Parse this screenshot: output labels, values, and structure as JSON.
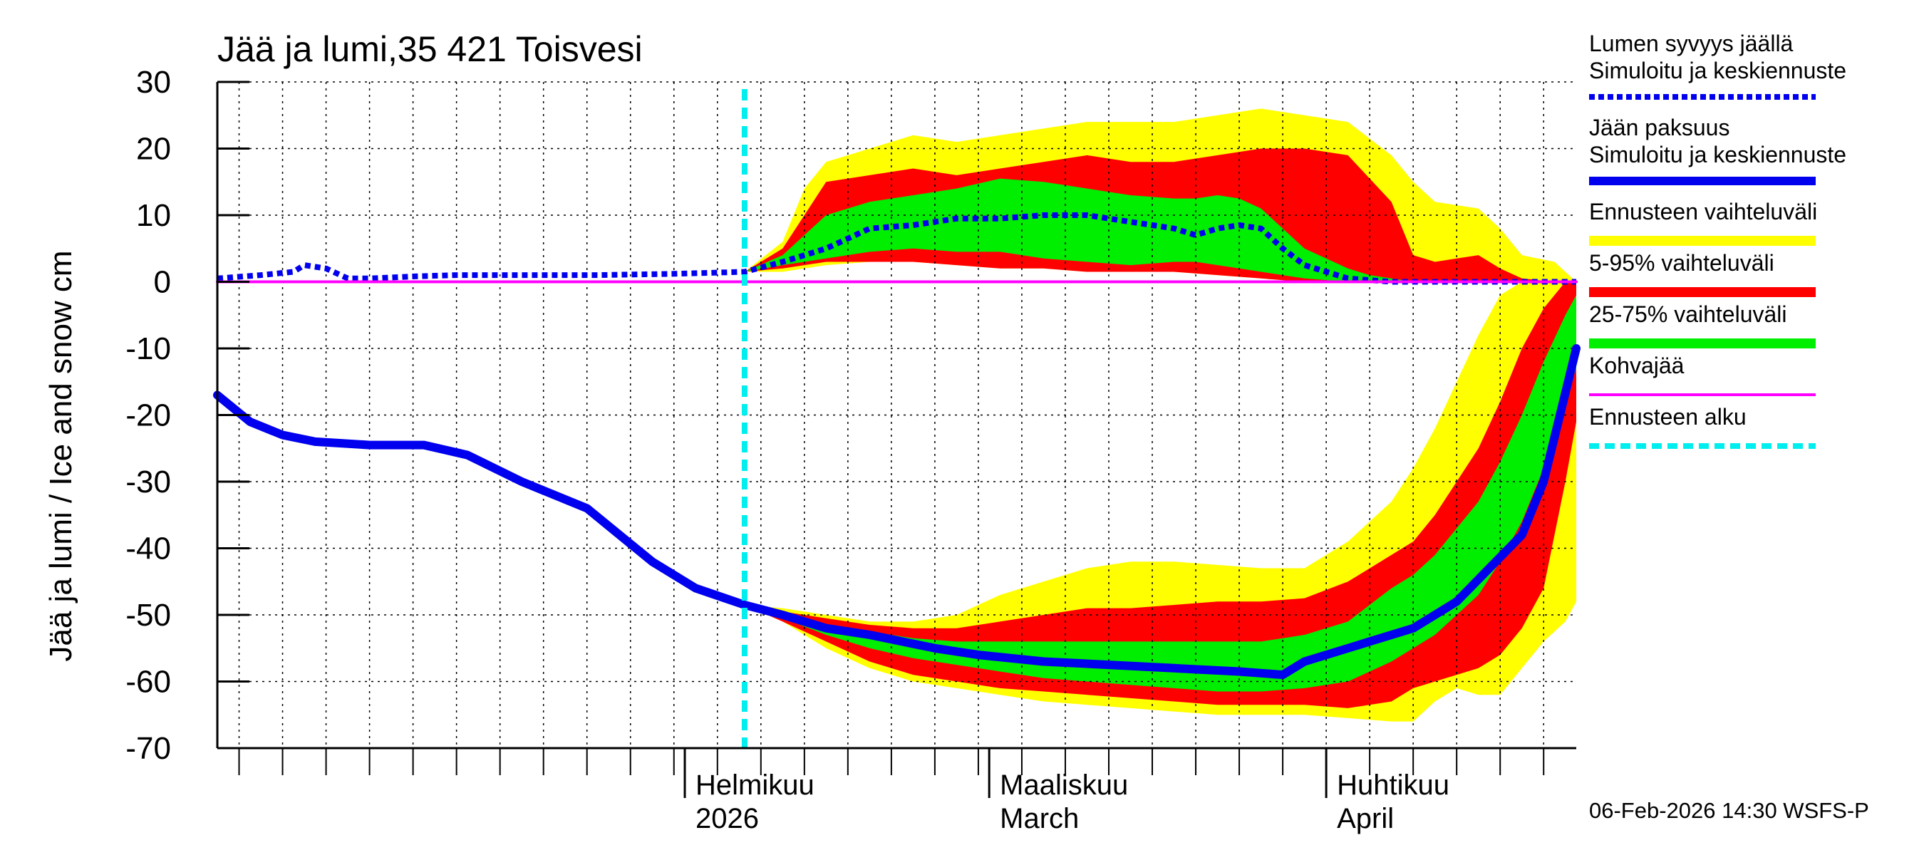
{
  "chart_data": {
    "type": "area",
    "title": "Jää ja lumi,35 421 Toisvesi",
    "ylabel": "Jää ja lumi / Ice and snow    cm",
    "ylim": [
      -70,
      30
    ],
    "yticks": [
      30,
      20,
      10,
      0,
      -10,
      -20,
      -30,
      -40,
      -50,
      -60,
      -70
    ],
    "ytick_labels": [
      "30",
      "20",
      "10",
      "0",
      "-10",
      "-20",
      "-30",
      "-40",
      "-50",
      "-60",
      "-70"
    ],
    "xlim_days": [
      0,
      125
    ],
    "x_unit": "days since 2025-12-20",
    "forecast_start_day": 48.5,
    "month_marks": [
      {
        "day": 43,
        "line1": "Helmikuu",
        "line2": "2026"
      },
      {
        "day": 71,
        "line1": "Maaliskuu",
        "line2": "March"
      },
      {
        "day": 102,
        "line1": "Huhtikuu",
        "line2": "April"
      }
    ],
    "series": [
      {
        "name": "Lumen syvyys jäällä Simuloitu ja keskiennuste",
        "style": "dotted",
        "color": "#0000ee",
        "x": [
          0,
          4,
          7,
          8,
          10,
          12,
          14,
          18,
          22,
          28,
          35,
          42,
          48.5,
          52,
          56,
          60,
          64,
          68,
          72,
          76,
          80,
          84,
          86,
          88,
          90,
          92,
          94,
          96,
          98,
          100,
          104,
          108,
          112,
          116,
          120,
          125
        ],
        "y": [
          0.5,
          1,
          1.5,
          2.5,
          2,
          0.5,
          0.5,
          0.8,
          1,
          1,
          1,
          1.2,
          1.5,
          3,
          5,
          8,
          8.5,
          9.5,
          9.5,
          10,
          10,
          9,
          8.5,
          8,
          7,
          8,
          8.5,
          8,
          5,
          2.5,
          0.5,
          0,
          0,
          0,
          0,
          0
        ]
      },
      {
        "name": "Jään paksuus Simuloitu ja keskiennuste",
        "style": "solid",
        "color": "#0000ee",
        "x": [
          0,
          3,
          6,
          9,
          14,
          19,
          23,
          28,
          34,
          40,
          44,
          48.5,
          52,
          56,
          60,
          66,
          70,
          76,
          82,
          88,
          94,
          98,
          100,
          104,
          106,
          110,
          114,
          117,
          120,
          122,
          125
        ],
        "y": [
          -17,
          -21,
          -23,
          -24,
          -24.5,
          -24.5,
          -26,
          -30,
          -34,
          -42,
          -46,
          -48.5,
          -50,
          -52,
          -53,
          -55,
          -56,
          -57,
          -57.5,
          -58,
          -58.5,
          -59,
          -57,
          -55,
          -54,
          -52,
          -48,
          -43,
          -38,
          -30,
          -10
        ]
      },
      {
        "name": "Lumi Ennusteen vaihteluväli",
        "color": "#ffff00",
        "x": [
          48.5,
          52,
          54,
          56,
          60,
          64,
          68,
          72,
          76,
          80,
          84,
          88,
          92,
          96,
          100,
          104,
          108,
          110,
          112,
          116,
          118,
          120,
          123,
          125
        ],
        "low": [
          1.5,
          1.5,
          2,
          2.5,
          3,
          3,
          2.5,
          2,
          2,
          1.5,
          1.5,
          1.5,
          1,
          0.5,
          0,
          0,
          0,
          0,
          0,
          0,
          0,
          0,
          0,
          0
        ],
        "high": [
          1.5,
          6,
          14,
          18,
          20,
          22,
          21,
          22,
          23,
          24,
          24,
          24,
          25,
          26,
          25,
          24,
          19,
          15,
          12,
          11,
          8,
          4,
          3,
          0
        ]
      },
      {
        "name": "Lumi 5-95% vaihteluväli",
        "color": "#ff0000",
        "x": [
          48.5,
          52,
          54,
          56,
          60,
          64,
          68,
          72,
          76,
          80,
          84,
          88,
          92,
          96,
          100,
          104,
          108,
          110,
          112,
          116,
          118,
          120,
          123,
          125
        ],
        "low": [
          1.5,
          2,
          2.5,
          3,
          3,
          3,
          2.5,
          2,
          2,
          1.5,
          1.5,
          1.5,
          1,
          0.5,
          0,
          0,
          0,
          0,
          0,
          0,
          0,
          0,
          0,
          0
        ],
        "high": [
          1.5,
          5,
          10,
          15,
          16,
          17,
          16,
          17,
          18,
          19,
          18,
          18,
          19,
          20,
          20,
          19,
          12,
          4,
          3,
          4,
          2,
          0.5,
          0,
          0
        ]
      },
      {
        "name": "Lumi 25-75% vaihteluväli",
        "color": "#00ee00",
        "x": [
          48.5,
          52,
          54,
          56,
          60,
          64,
          68,
          72,
          76,
          80,
          84,
          88,
          90,
          92,
          94,
          96,
          98,
          100,
          104,
          106,
          108,
          110,
          112
        ],
        "low": [
          1.5,
          2.5,
          3,
          3.5,
          4.5,
          5,
          4.5,
          4.5,
          3.5,
          3,
          2.5,
          3,
          3,
          2.5,
          2,
          1.5,
          1,
          0.5,
          0,
          0,
          0,
          0,
          0
        ],
        "high": [
          1.5,
          4,
          7,
          10,
          12,
          13,
          14,
          15.5,
          15,
          14,
          13,
          12.5,
          12.5,
          13,
          12.5,
          11,
          8,
          5,
          2,
          1,
          0.5,
          0,
          0
        ]
      },
      {
        "name": "Jää Ennusteen vaihteluväli",
        "color": "#ffff00",
        "x": [
          48.5,
          52,
          56,
          60,
          64,
          68,
          72,
          76,
          80,
          84,
          88,
          92,
          96,
          100,
          104,
          108,
          110,
          112,
          114,
          116,
          118,
          120,
          122,
          124,
          125
        ],
        "low": [
          -48.5,
          -51,
          -55,
          -58,
          -60,
          -61,
          -62,
          -63,
          -63.5,
          -64,
          -64.5,
          -65,
          -65,
          -65,
          -65.5,
          -66,
          -66,
          -63,
          -61,
          -62,
          -62,
          -58,
          -54,
          -51,
          -48
        ],
        "high": [
          -48.5,
          -49,
          -50,
          -51,
          -51,
          -50,
          -47,
          -45,
          -43,
          -42,
          -42,
          -42.5,
          -43,
          -43,
          -39,
          -33,
          -28,
          -22,
          -15,
          -8,
          -2,
          0,
          0,
          0,
          0
        ]
      },
      {
        "name": "Jää 5-95% vaihteluväli",
        "color": "#ff0000",
        "x": [
          48.5,
          52,
          56,
          60,
          64,
          68,
          72,
          76,
          80,
          84,
          88,
          92,
          96,
          100,
          104,
          108,
          110,
          112,
          114,
          116,
          118,
          120,
          122,
          124,
          125
        ],
        "low": [
          -48.5,
          -51,
          -54,
          -57,
          -59,
          -60,
          -61,
          -61.5,
          -62,
          -62.5,
          -63,
          -63.5,
          -63.5,
          -63.5,
          -64,
          -63,
          -61,
          -60,
          -59,
          -58,
          -56,
          -52,
          -46,
          -30,
          -21
        ],
        "high": [
          -48.5,
          -49.5,
          -50.5,
          -51.5,
          -52,
          -52,
          -51,
          -50,
          -49,
          -49,
          -48.5,
          -48,
          -48,
          -47.5,
          -45,
          -41,
          -39,
          -35,
          -30,
          -25,
          -18,
          -10,
          -4,
          0,
          0
        ]
      },
      {
        "name": "Jää 25-75% vaihteluväli",
        "color": "#00ee00",
        "x": [
          48.5,
          52,
          56,
          60,
          64,
          68,
          72,
          76,
          80,
          84,
          88,
          92,
          96,
          100,
          104,
          108,
          110,
          112,
          114,
          116,
          118,
          120,
          122,
          124,
          125
        ],
        "low": [
          -48.5,
          -50.5,
          -53,
          -55,
          -56.5,
          -57.5,
          -58.5,
          -59.5,
          -60,
          -60.5,
          -61,
          -61.5,
          -61.5,
          -61,
          -60,
          -57,
          -55,
          -53,
          -50,
          -47,
          -42,
          -36,
          -28,
          -18,
          -13
        ],
        "high": [
          -48.5,
          -50,
          -51.5,
          -52.5,
          -53.5,
          -54,
          -54,
          -54,
          -54,
          -54,
          -54,
          -54,
          -54,
          -53,
          -51,
          -46,
          -44,
          -41,
          -37,
          -33,
          -27,
          -20,
          -12,
          -5,
          -2
        ]
      },
      {
        "name": "Kohvajää",
        "style": "solid",
        "color": "#ff00ff",
        "x": [
          0,
          125
        ],
        "y": [
          0,
          0
        ]
      }
    ]
  },
  "legend": {
    "items": [
      {
        "line1": "Lumen syvyys jäällä",
        "line2": "Simuloitu ja keskiennuste",
        "color": "#0000ee",
        "style": "dotted"
      },
      {
        "line1": "Jään paksuus",
        "line2": "Simuloitu ja keskiennuste",
        "color": "#0000ee",
        "style": "solid"
      },
      {
        "line1": "Ennusteen vaihteluväli",
        "line2": "",
        "color": "#ffff00",
        "style": "band"
      },
      {
        "line1": "5-95% vaihteluväli",
        "line2": "",
        "color": "#ff0000",
        "style": "band"
      },
      {
        "line1": "25-75% vaihteluväli",
        "line2": "",
        "color": "#00ee00",
        "style": "band"
      },
      {
        "line1": "Kohvajää",
        "line2": "",
        "color": "#ff00ff",
        "style": "solid"
      },
      {
        "line1": "Ennusteen alku",
        "line2": "",
        "color": "#00eeee",
        "style": "dashed"
      }
    ]
  },
  "footer": "06-Feb-2026 14:30 WSFS-P",
  "colors": {
    "forecast_start": "#00eeee",
    "grid": "#000000"
  }
}
